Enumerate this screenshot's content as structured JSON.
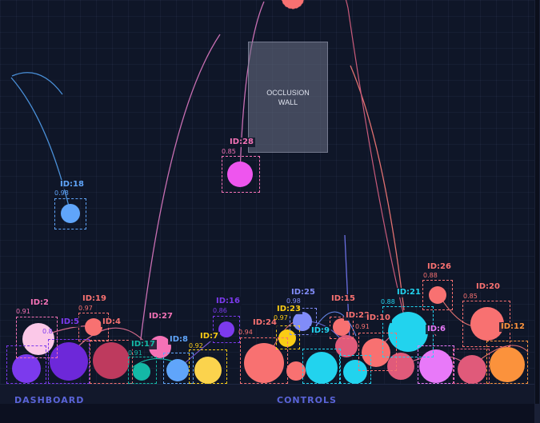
{
  "occlusion_wall": {
    "line1": "OCCLUSION",
    "line2": "WALL"
  },
  "panels": {
    "left_title": "DASHBOARD",
    "right_title": "CONTROLS"
  },
  "tracked_objects": [
    {
      "id": "ID:2",
      "conf": "0.91",
      "color": "#f472b6"
    },
    {
      "id": "ID:5",
      "conf": "0.8",
      "color": "#7c3aed"
    },
    {
      "id": "ID:19",
      "conf": "0.97",
      "color": "#f87171"
    },
    {
      "id": "ID:4",
      "conf": "",
      "color": "#f87171"
    },
    {
      "id": "ID:27",
      "conf": "",
      "color": "#f472b6"
    },
    {
      "id": "ID:17",
      "conf": "0.91",
      "color": "#14b8a6"
    },
    {
      "id": "ID:8",
      "conf": "",
      "color": "#60a5fa"
    },
    {
      "id": "ID:7",
      "conf": "0.92",
      "color": "#facc15"
    },
    {
      "id": "ID:16",
      "conf": "0.86",
      "color": "#7c3aed"
    },
    {
      "id": "ID:24",
      "conf": "0.94",
      "color": "#f87171"
    },
    {
      "id": "ID:23",
      "conf": "0.97",
      "color": "#facc15"
    },
    {
      "id": "ID:25",
      "conf": "0.98",
      "color": "#818cf8"
    },
    {
      "id": "ID:9",
      "conf": "",
      "color": "#22d3ee"
    },
    {
      "id": "ID:15",
      "conf": "",
      "color": "#f87171"
    },
    {
      "id": "ID:22",
      "conf": "",
      "color": "#f87171"
    },
    {
      "id": "ID:10",
      "conf": "0.91",
      "color": "#f87171"
    },
    {
      "id": "ID:21",
      "conf": "0.88",
      "color": "#22d3ee"
    },
    {
      "id": "ID:6",
      "conf": "",
      "color": "#e879f9"
    },
    {
      "id": "ID:26",
      "conf": "0.88",
      "color": "#f87171"
    },
    {
      "id": "ID:20",
      "conf": "0.85",
      "color": "#f87171"
    },
    {
      "id": "ID:12",
      "conf": "",
      "color": "#fb923c"
    },
    {
      "id": "ID:28",
      "conf": "0.85",
      "color": "#f472b6"
    },
    {
      "id": "ID:18",
      "conf": "0.98",
      "color": "#60a5fa"
    }
  ]
}
